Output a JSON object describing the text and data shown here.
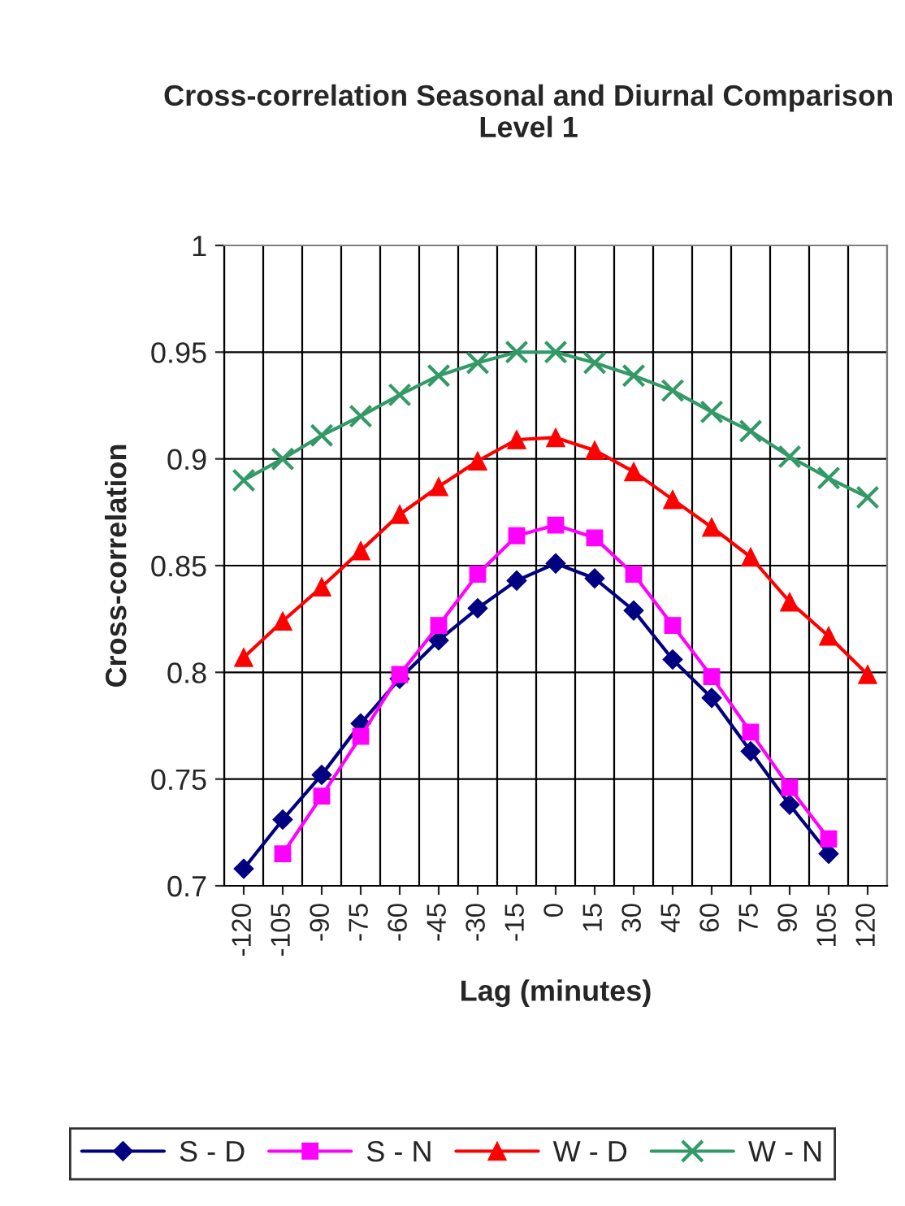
{
  "chart_data": {
    "type": "line",
    "title": "Cross-correlation Seasonal and Diurnal Comparison Level 1",
    "xlabel": "Lag (minutes)",
    "ylabel": "Cross-correlation",
    "categories": [
      "-120",
      "-105",
      "-90",
      "-75",
      "-60",
      "-45",
      "-30",
      "-15",
      "0",
      "15",
      "30",
      "45",
      "60",
      "75",
      "90",
      "105",
      "120"
    ],
    "series": [
      {
        "name": "S - D",
        "color": "#000080",
        "marker": "diamond",
        "values": [
          0.708,
          0.731,
          0.752,
          0.776,
          0.797,
          0.815,
          0.83,
          0.843,
          0.851,
          0.844,
          0.829,
          0.806,
          0.788,
          0.763,
          0.738,
          0.715,
          null
        ]
      },
      {
        "name": "S - N",
        "color": "#ff00ff",
        "marker": "square",
        "values": [
          null,
          0.715,
          0.742,
          0.77,
          0.799,
          0.822,
          0.846,
          0.864,
          0.869,
          0.863,
          0.846,
          0.822,
          0.798,
          0.772,
          0.746,
          0.722,
          null
        ]
      },
      {
        "name": "W - D",
        "color": "#ff0000",
        "marker": "triangle",
        "values": [
          0.807,
          0.824,
          0.84,
          0.857,
          0.874,
          0.887,
          0.899,
          0.909,
          0.91,
          0.904,
          0.894,
          0.881,
          0.868,
          0.854,
          0.833,
          0.817,
          0.799
        ]
      },
      {
        "name": "W - N",
        "color": "#339966",
        "marker": "cross",
        "values": [
          0.89,
          0.9,
          0.911,
          0.92,
          0.93,
          0.939,
          0.945,
          0.95,
          0.95,
          0.945,
          0.939,
          0.932,
          0.922,
          0.913,
          0.901,
          0.891,
          0.882
        ]
      }
    ],
    "ylim": [
      0.7,
      1
    ],
    "yticks": [
      {
        "value": 0.7,
        "label": "0.7"
      },
      {
        "value": 0.75,
        "label": "0.75"
      },
      {
        "value": 0.8,
        "label": "0.8"
      },
      {
        "value": 0.85,
        "label": "0.85"
      },
      {
        "value": 0.9,
        "label": "0.9"
      },
      {
        "value": 0.95,
        "label": "0.95"
      },
      {
        "value": 1,
        "label": "1"
      }
    ],
    "grid": true,
    "legend": "bottom",
    "line_style": "solid"
  }
}
